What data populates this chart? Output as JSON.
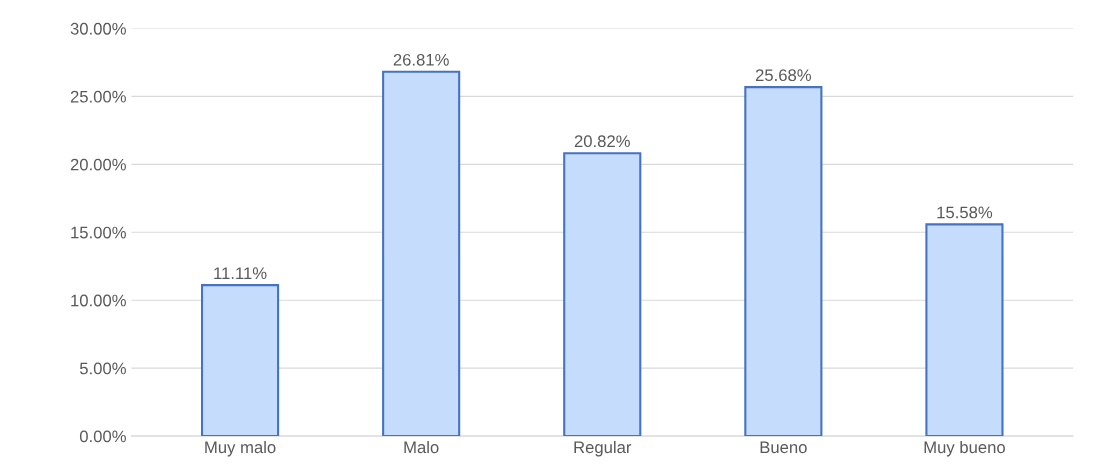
{
  "chart_data": {
    "type": "bar",
    "categories": [
      "Muy malo",
      "Malo",
      "Regular",
      "Bueno",
      "Muy bueno"
    ],
    "values": [
      11.11,
      26.81,
      20.82,
      25.68,
      15.58
    ],
    "value_labels": [
      "11.11%",
      "26.81%",
      "20.82%",
      "25.68%",
      "15.58%"
    ],
    "color": "#c5dcfc",
    "ylim": [
      0,
      30
    ],
    "yticks": [
      {
        "value": 0,
        "label": "0.00%"
      },
      {
        "value": 5,
        "label": "5.00%"
      },
      {
        "value": 10,
        "label": "10.00%"
      },
      {
        "value": 15,
        "label": "15.00%"
      },
      {
        "value": 20,
        "label": "20.00%"
      },
      {
        "value": 25,
        "label": "25.00%"
      },
      {
        "value": 30,
        "label": "30.00%"
      }
    ],
    "grid": "y"
  }
}
